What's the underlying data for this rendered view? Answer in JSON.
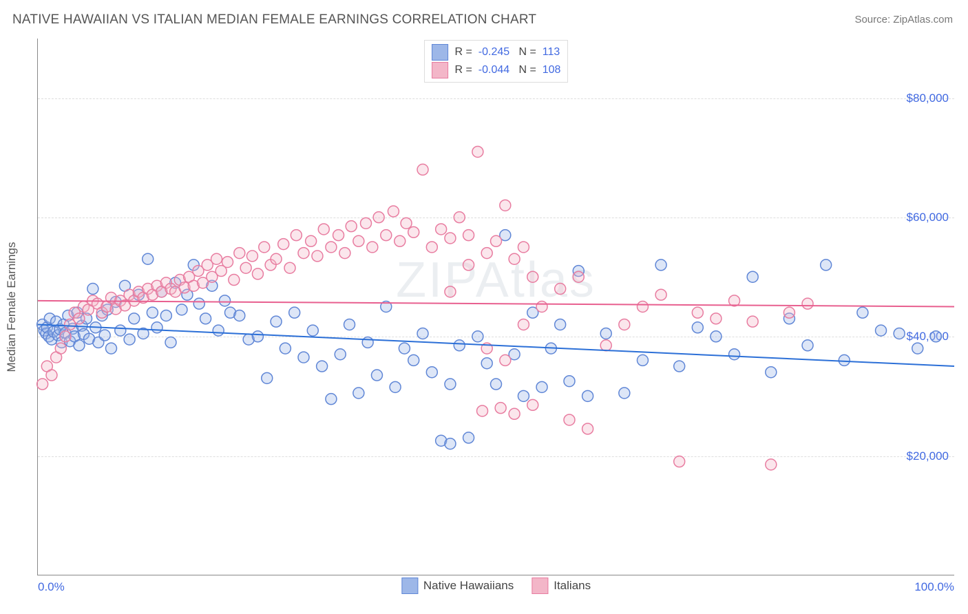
{
  "title": "NATIVE HAWAIIAN VS ITALIAN MEDIAN FEMALE EARNINGS CORRELATION CHART",
  "source": "Source: ZipAtlas.com",
  "watermark": "ZIPAtlas",
  "y_axis_title": "Median Female Earnings",
  "chart": {
    "type": "scatter",
    "xlim": [
      0,
      100
    ],
    "ylim": [
      0,
      90000
    ],
    "x_ticks": [
      {
        "value": 0,
        "label": "0.0%"
      },
      {
        "value": 100,
        "label": "100.0%"
      }
    ],
    "y_ticks": [
      {
        "value": 20000,
        "label": "$20,000"
      },
      {
        "value": 40000,
        "label": "$40,000"
      },
      {
        "value": 60000,
        "label": "$60,000"
      },
      {
        "value": 80000,
        "label": "$80,000"
      }
    ],
    "grid_color": "#dddddd",
    "axis_color": "#888888",
    "background_color": "#ffffff",
    "marker_radius": 8,
    "marker_stroke_width": 1.5,
    "marker_fill_opacity": 0.35,
    "trend_line_width": 2,
    "label_fontsize": 17,
    "title_fontsize": 19,
    "y_label_color": "#4169e1",
    "x_label_color": "#4169e1"
  },
  "series": [
    {
      "name": "Native Hawaiians",
      "color_fill": "#9db7e8",
      "color_stroke": "#5f86d6",
      "trend_color": "#2b6fd7",
      "R": "-0.245",
      "N": "113",
      "trend": {
        "y_at_x0": 42000,
        "y_at_x100": 35000
      },
      "points": [
        [
          0.5,
          42000
        ],
        [
          0.7,
          41000
        ],
        [
          0.9,
          40500
        ],
        [
          1,
          41500
        ],
        [
          1.2,
          40000
        ],
        [
          1.3,
          43000
        ],
        [
          1.5,
          39500
        ],
        [
          1.7,
          40800
        ],
        [
          2,
          42500
        ],
        [
          2.2,
          40200
        ],
        [
          2.4,
          41200
        ],
        [
          2.6,
          39000
        ],
        [
          2.8,
          42000
        ],
        [
          3,
          40600
        ],
        [
          3.3,
          43500
        ],
        [
          3.5,
          39200
        ],
        [
          3.8,
          41300
        ],
        [
          4,
          40000
        ],
        [
          4.3,
          44000
        ],
        [
          4.5,
          38500
        ],
        [
          4.8,
          41800
        ],
        [
          5,
          40400
        ],
        [
          5.3,
          43000
        ],
        [
          5.6,
          39600
        ],
        [
          6,
          48000
        ],
        [
          6.3,
          41500
        ],
        [
          6.6,
          39000
        ],
        [
          7,
          43500
        ],
        [
          7.3,
          40200
        ],
        [
          7.6,
          44500
        ],
        [
          8,
          38000
        ],
        [
          8.5,
          45800
        ],
        [
          9,
          41000
        ],
        [
          9.5,
          48500
        ],
        [
          10,
          39500
        ],
        [
          10.5,
          43000
        ],
        [
          11,
          47000
        ],
        [
          11.5,
          40500
        ],
        [
          12,
          53000
        ],
        [
          12.5,
          44000
        ],
        [
          13,
          41500
        ],
        [
          13.5,
          47500
        ],
        [
          14,
          43500
        ],
        [
          14.5,
          39000
        ],
        [
          15,
          49000
        ],
        [
          15.7,
          44500
        ],
        [
          16.3,
          47000
        ],
        [
          17,
          52000
        ],
        [
          17.6,
          45500
        ],
        [
          18.3,
          43000
        ],
        [
          19,
          48500
        ],
        [
          19.7,
          41000
        ],
        [
          20.4,
          46000
        ],
        [
          21,
          44000
        ],
        [
          22,
          43500
        ],
        [
          23,
          39500
        ],
        [
          24,
          40000
        ],
        [
          25,
          33000
        ],
        [
          26,
          42500
        ],
        [
          27,
          38000
        ],
        [
          28,
          44000
        ],
        [
          29,
          36500
        ],
        [
          30,
          41000
        ],
        [
          31,
          35000
        ],
        [
          32,
          29500
        ],
        [
          33,
          37000
        ],
        [
          34,
          42000
        ],
        [
          35,
          30500
        ],
        [
          36,
          39000
        ],
        [
          37,
          33500
        ],
        [
          38,
          45000
        ],
        [
          39,
          31500
        ],
        [
          40,
          38000
        ],
        [
          41,
          36000
        ],
        [
          42,
          40500
        ],
        [
          43,
          34000
        ],
        [
          44,
          22500
        ],
        [
          45,
          32000
        ],
        [
          46,
          38500
        ],
        [
          47,
          23000
        ],
        [
          48,
          40000
        ],
        [
          49,
          35500
        ],
        [
          50,
          32000
        ],
        [
          51,
          57000
        ],
        [
          52,
          37000
        ],
        [
          53,
          30000
        ],
        [
          54,
          44000
        ],
        [
          55,
          31500
        ],
        [
          56,
          38000
        ],
        [
          57,
          42000
        ],
        [
          58,
          32500
        ],
        [
          59,
          51000
        ],
        [
          60,
          30000
        ],
        [
          62,
          40500
        ],
        [
          64,
          30500
        ],
        [
          66,
          36000
        ],
        [
          68,
          52000
        ],
        [
          70,
          35000
        ],
        [
          72,
          41500
        ],
        [
          74,
          40000
        ],
        [
          76,
          37000
        ],
        [
          78,
          50000
        ],
        [
          80,
          34000
        ],
        [
          82,
          43000
        ],
        [
          84,
          38500
        ],
        [
          86,
          52000
        ],
        [
          88,
          36000
        ],
        [
          90,
          44000
        ],
        [
          92,
          41000
        ],
        [
          94,
          40500
        ],
        [
          96,
          38000
        ],
        [
          98,
          40000
        ],
        [
          45,
          22000
        ]
      ]
    },
    {
      "name": "Italians",
      "color_fill": "#f3b6c8",
      "color_stroke": "#e87ca0",
      "trend_color": "#e85f8f",
      "R": "-0.044",
      "N": "108",
      "trend": {
        "y_at_x0": 46000,
        "y_at_x100": 45000
      },
      "points": [
        [
          0.5,
          32000
        ],
        [
          1,
          35000
        ],
        [
          1.5,
          33500
        ],
        [
          2,
          36500
        ],
        [
          2.5,
          38000
        ],
        [
          3,
          40000
        ],
        [
          3.5,
          42000
        ],
        [
          4,
          44000
        ],
        [
          4.5,
          43000
        ],
        [
          5,
          45000
        ],
        [
          5.5,
          44500
        ],
        [
          6,
          46000
        ],
        [
          6.5,
          45500
        ],
        [
          7,
          44000
        ],
        [
          7.5,
          45000
        ],
        [
          8,
          46500
        ],
        [
          8.5,
          44600
        ],
        [
          9,
          46000
        ],
        [
          9.5,
          45200
        ],
        [
          10,
          47000
        ],
        [
          10.5,
          46000
        ],
        [
          11,
          47500
        ],
        [
          11.5,
          46500
        ],
        [
          12,
          48000
        ],
        [
          12.5,
          47000
        ],
        [
          13,
          48500
        ],
        [
          13.5,
          47500
        ],
        [
          14,
          49000
        ],
        [
          14.5,
          48000
        ],
        [
          15,
          47500
        ],
        [
          15.5,
          49500
        ],
        [
          16,
          48200
        ],
        [
          16.5,
          50000
        ],
        [
          17,
          48500
        ],
        [
          17.5,
          51000
        ],
        [
          18,
          49000
        ],
        [
          18.5,
          52000
        ],
        [
          19,
          50000
        ],
        [
          19.5,
          53000
        ],
        [
          20,
          51000
        ],
        [
          20.7,
          52500
        ],
        [
          21.4,
          49500
        ],
        [
          22,
          54000
        ],
        [
          22.7,
          51500
        ],
        [
          23.4,
          53500
        ],
        [
          24,
          50500
        ],
        [
          24.7,
          55000
        ],
        [
          25.4,
          52000
        ],
        [
          26,
          53000
        ],
        [
          26.8,
          55500
        ],
        [
          27.5,
          51500
        ],
        [
          28.2,
          57000
        ],
        [
          29,
          54000
        ],
        [
          29.8,
          56000
        ],
        [
          30.5,
          53500
        ],
        [
          31.2,
          58000
        ],
        [
          32,
          55000
        ],
        [
          32.8,
          57000
        ],
        [
          33.5,
          54000
        ],
        [
          34.2,
          58500
        ],
        [
          35,
          56000
        ],
        [
          35.8,
          59000
        ],
        [
          36.5,
          55000
        ],
        [
          37.2,
          60000
        ],
        [
          38,
          57000
        ],
        [
          38.8,
          61000
        ],
        [
          39.5,
          56000
        ],
        [
          40.2,
          59000
        ],
        [
          41,
          57500
        ],
        [
          42,
          68000
        ],
        [
          43,
          55000
        ],
        [
          44,
          58000
        ],
        [
          45,
          56500
        ],
        [
          46,
          60000
        ],
        [
          47,
          57000
        ],
        [
          48,
          71000
        ],
        [
          49,
          54000
        ],
        [
          50,
          56000
        ],
        [
          51,
          62000
        ],
        [
          52,
          53000
        ],
        [
          53,
          55000
        ],
        [
          54,
          50000
        ],
        [
          45,
          47500
        ],
        [
          47,
          52000
        ],
        [
          49,
          38000
        ],
        [
          51,
          36000
        ],
        [
          53,
          42000
        ],
        [
          55,
          45000
        ],
        [
          57,
          48000
        ],
        [
          59,
          50000
        ],
        [
          48.5,
          27500
        ],
        [
          50.5,
          28000
        ],
        [
          60,
          24500
        ],
        [
          62,
          38500
        ],
        [
          64,
          42000
        ],
        [
          66,
          45000
        ],
        [
          68,
          47000
        ],
        [
          70,
          19000
        ],
        [
          72,
          44000
        ],
        [
          74,
          43000
        ],
        [
          76,
          46000
        ],
        [
          78,
          42500
        ],
        [
          80,
          18500
        ],
        [
          82,
          44000
        ],
        [
          84,
          45500
        ],
        [
          52,
          27000
        ],
        [
          54,
          28500
        ],
        [
          58,
          26000
        ]
      ]
    }
  ],
  "legend_top_labels": {
    "R": "R =",
    "N": "N ="
  },
  "legend_bottom": [
    {
      "series_index": 0
    },
    {
      "series_index": 1
    }
  ]
}
